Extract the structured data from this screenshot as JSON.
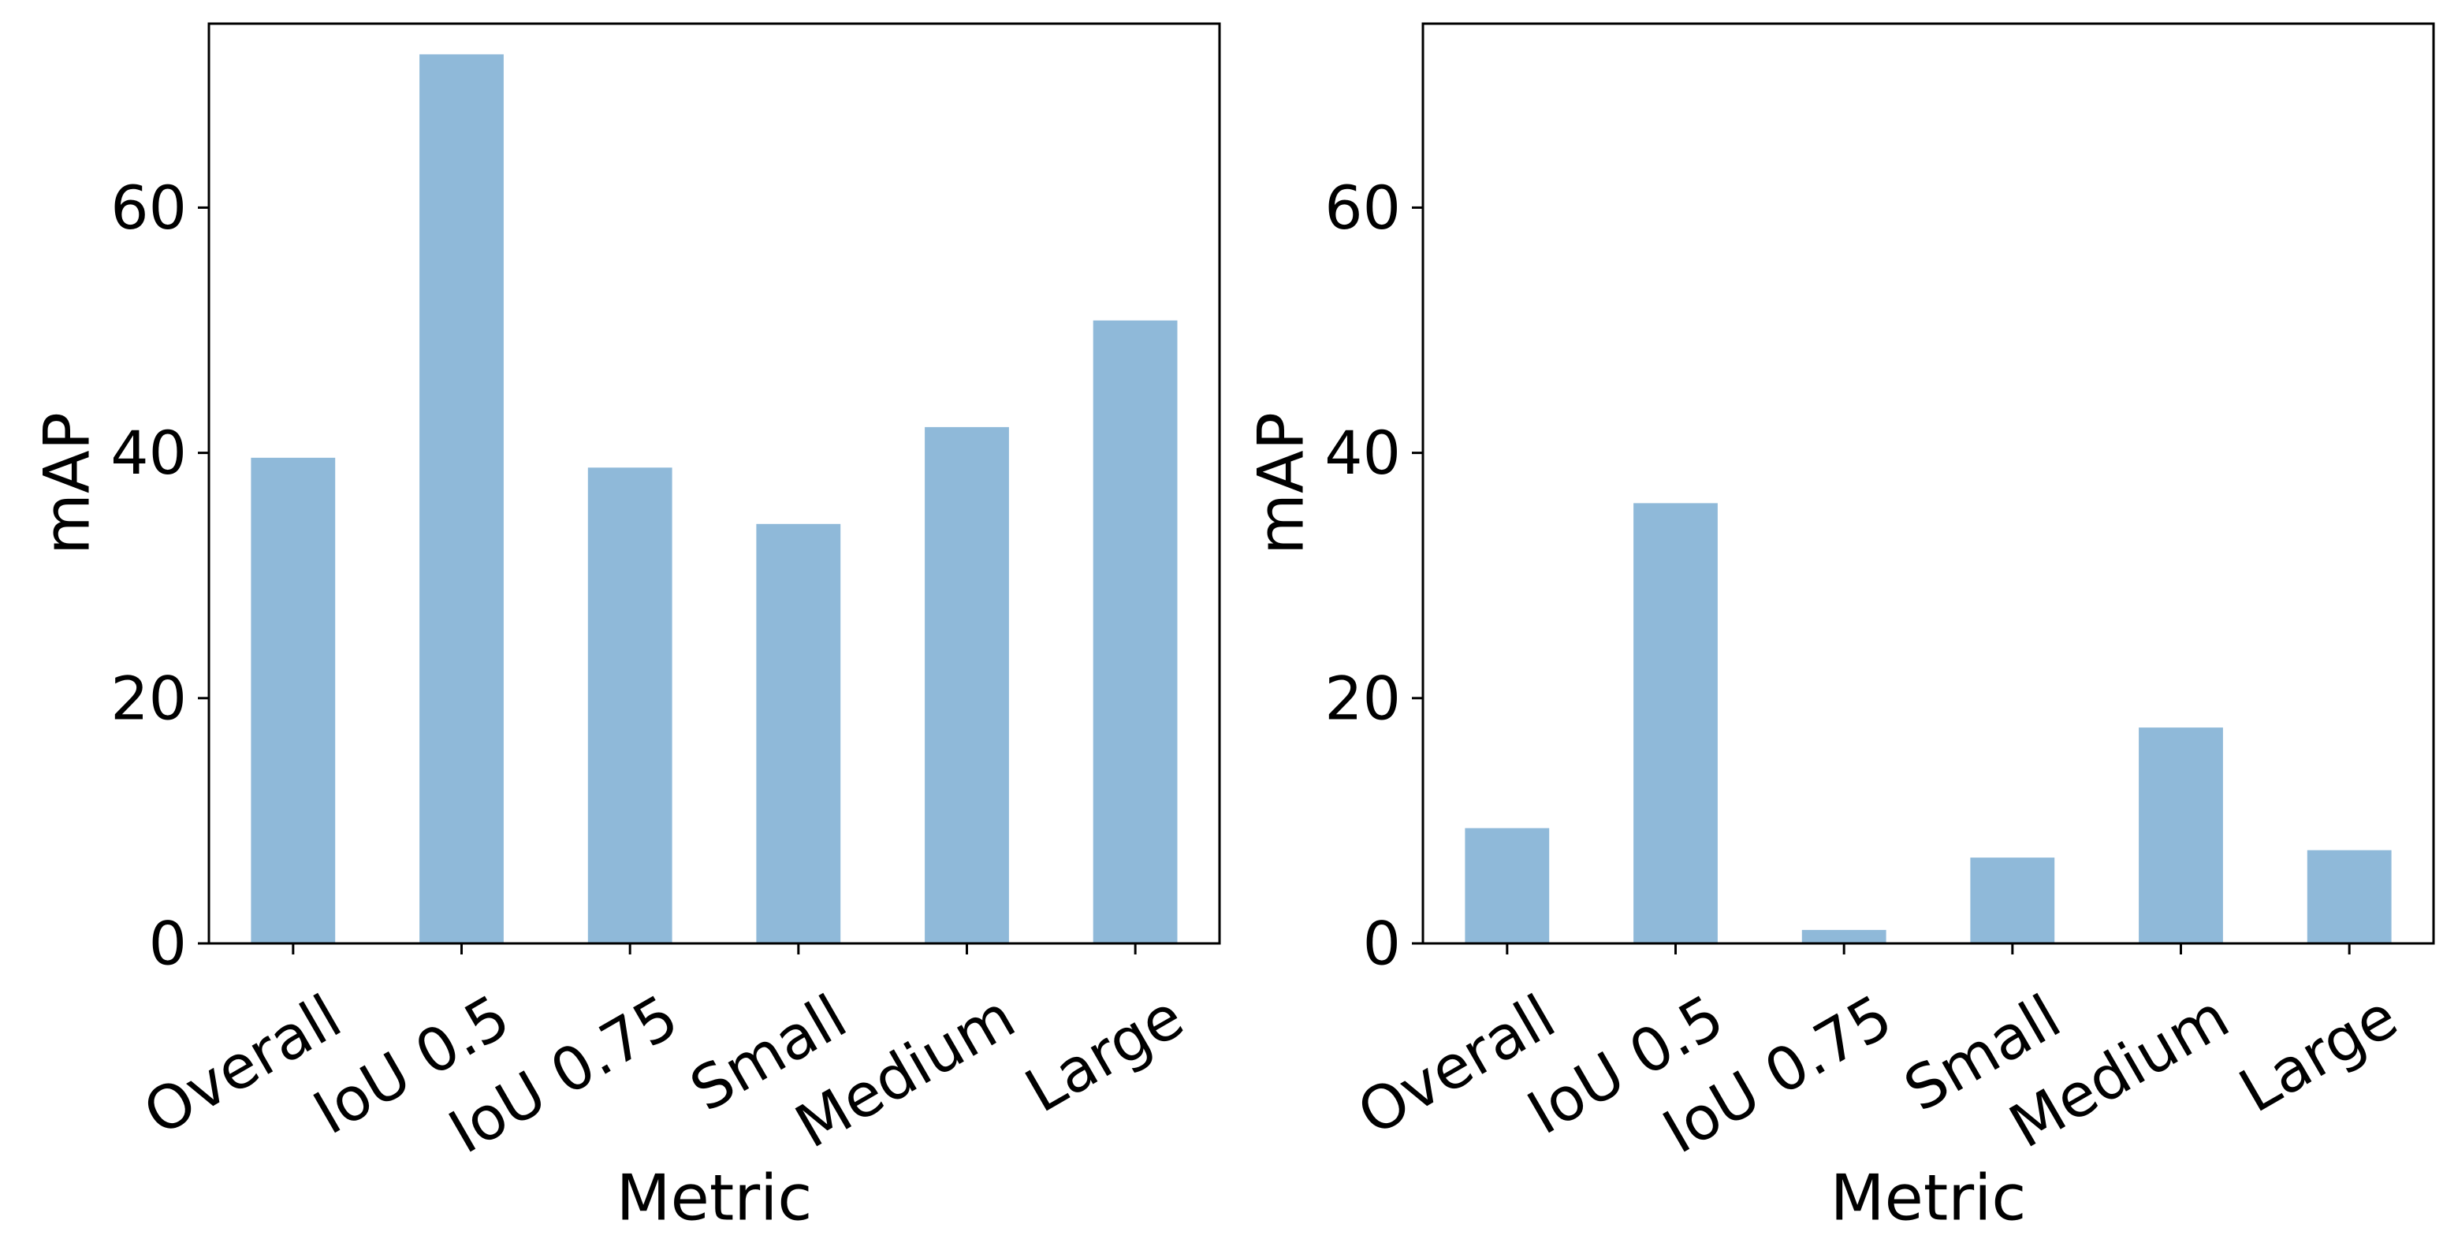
{
  "chart_data": [
    {
      "type": "bar",
      "categories": [
        "Overall",
        "IoU 0.5",
        "IoU 0.75",
        "Small",
        "Medium",
        "Large"
      ],
      "values": [
        39.6,
        72.5,
        38.8,
        34.2,
        42.1,
        50.8
      ],
      "xlabel": "Metric",
      "ylabel": "mAP",
      "ylim": [
        0,
        75
      ],
      "yticks": [
        "0",
        "20",
        "40",
        "60"
      ],
      "grid": false,
      "bar_color": "#8fb9d9"
    },
    {
      "type": "bar",
      "categories": [
        "Overall",
        "IoU 0.5",
        "IoU 0.75",
        "Small",
        "Medium",
        "Large"
      ],
      "values": [
        9.4,
        35.9,
        1.1,
        7.0,
        17.6,
        7.6
      ],
      "xlabel": "Metric",
      "ylabel": "mAP",
      "ylim": [
        0,
        75
      ],
      "yticks": [
        "0",
        "20",
        "40",
        "60"
      ],
      "grid": false,
      "bar_color": "#8fb9d9"
    }
  ]
}
